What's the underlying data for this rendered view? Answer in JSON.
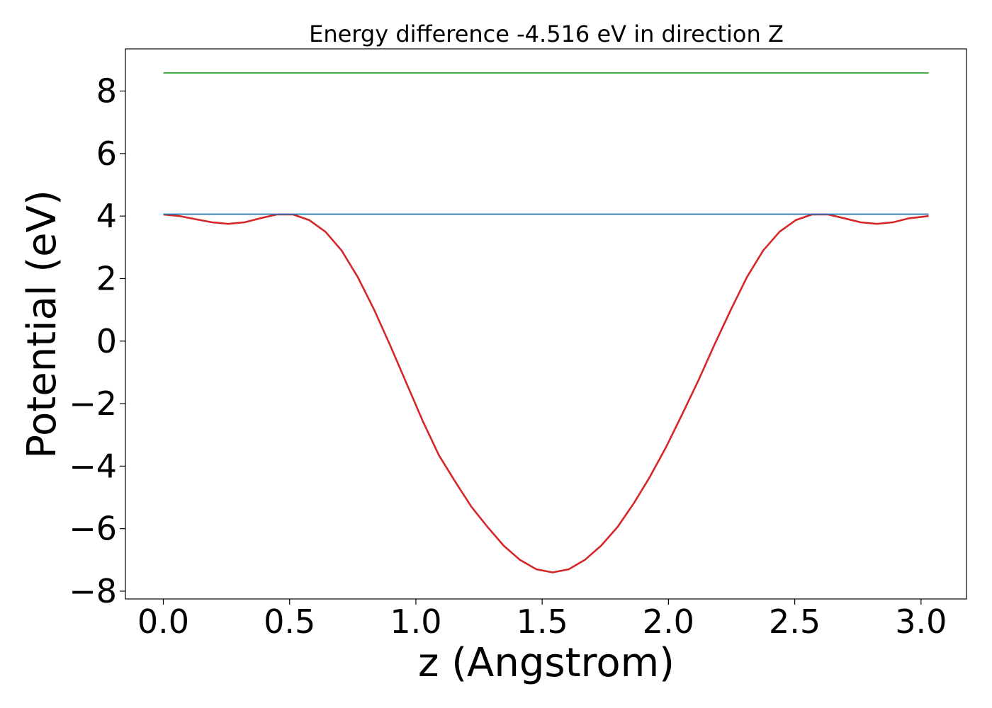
{
  "chart_data": {
    "type": "line",
    "title": "Energy difference -4.516 eV in direction Z",
    "xlabel": "z (Angstrom)",
    "ylabel": "Potential (eV)",
    "xlim": [
      -0.15,
      3.18
    ],
    "ylim": [
      -8.25,
      9.35
    ],
    "grid": false,
    "xticks": [
      0.0,
      0.5,
      1.0,
      1.5,
      2.0,
      2.5,
      3.0
    ],
    "xtick_labels": [
      "0.0",
      "0.5",
      "1.0",
      "1.5",
      "2.0",
      "2.5",
      "3.0"
    ],
    "yticks": [
      -8,
      -6,
      -4,
      -2,
      0,
      2,
      4,
      6,
      8
    ],
    "ytick_labels": [
      "−8",
      "−6",
      "−4",
      "−2",
      "0",
      "2",
      "4",
      "6",
      "8"
    ],
    "series": [
      {
        "color": "#d62728",
        "x": [
          0.0,
          0.064,
          0.128,
          0.193,
          0.257,
          0.321,
          0.385,
          0.449,
          0.514,
          0.578,
          0.642,
          0.706,
          0.77,
          0.835,
          0.899,
          0.963,
          1.027,
          1.091,
          1.156,
          1.22,
          1.284,
          1.348,
          1.412,
          1.477,
          1.541,
          1.605,
          1.669,
          1.733,
          1.798,
          1.862,
          1.926,
          1.99,
          2.054,
          2.119,
          2.183,
          2.247,
          2.311,
          2.375,
          2.44,
          2.504,
          2.568,
          2.632,
          2.696,
          2.761,
          2.825,
          2.889,
          2.953,
          3.03
        ],
        "y": [
          4.05,
          4.0,
          3.9,
          3.8,
          3.75,
          3.8,
          3.93,
          4.05,
          4.05,
          3.87,
          3.5,
          2.9,
          2.05,
          1.0,
          -0.15,
          -1.35,
          -2.55,
          -3.65,
          -4.5,
          -5.3,
          -5.95,
          -6.55,
          -7.0,
          -7.3,
          -7.4,
          -7.3,
          -7.0,
          -6.55,
          -5.95,
          -5.2,
          -4.35,
          -3.4,
          -2.35,
          -1.25,
          -0.1,
          1.0,
          2.05,
          2.9,
          3.5,
          3.87,
          4.05,
          4.05,
          3.93,
          3.8,
          3.75,
          3.8,
          3.93,
          4.0
        ]
      },
      {
        "color": "#1f77b4",
        "x": [
          0.0,
          3.03
        ],
        "y": [
          4.06,
          4.06
        ]
      },
      {
        "color": "#2ca02c",
        "x": [
          0.0,
          3.03
        ],
        "y": [
          8.58,
          8.58
        ]
      }
    ]
  }
}
